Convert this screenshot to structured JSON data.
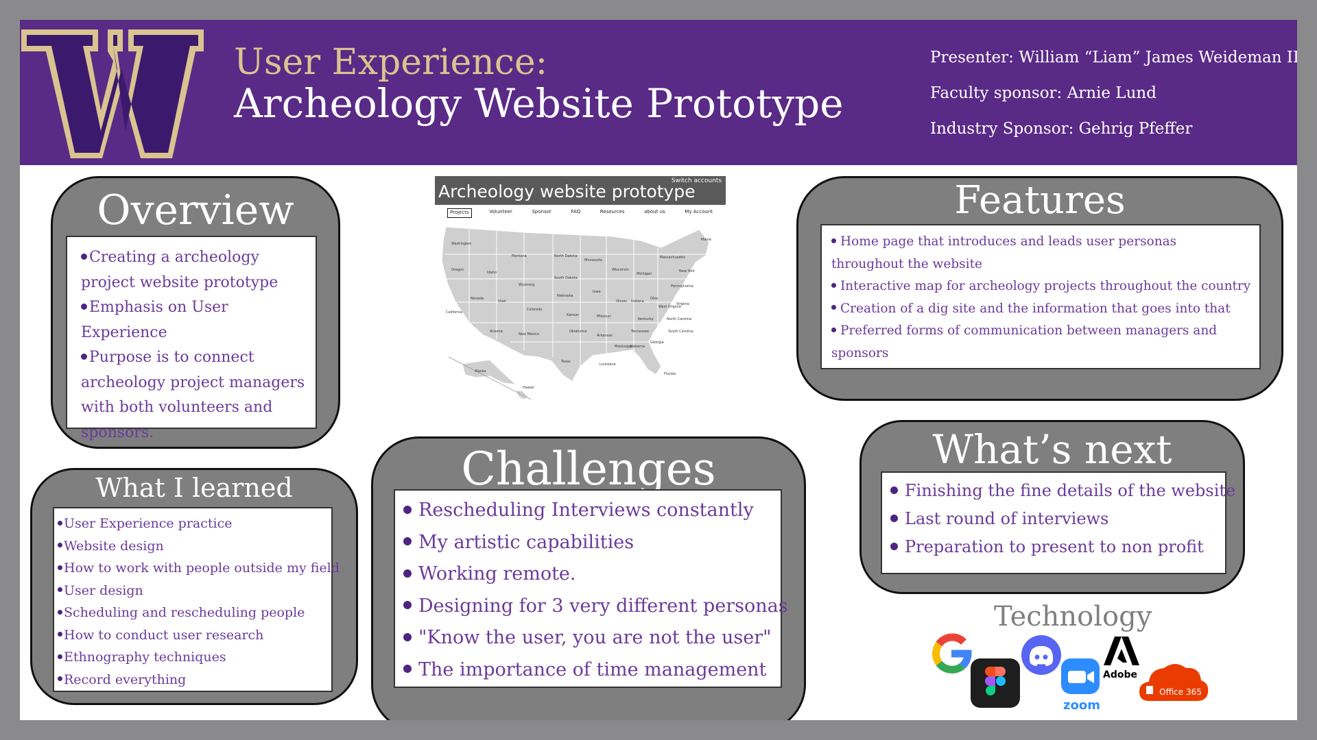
{
  "header": {
    "title_line1": "User Experience:",
    "title_line2": "Archeology Website Prototype",
    "presenter": "Presenter: William “Liam” James Weideman III",
    "faculty_sponsor": "Faculty sponsor: Arnie Lund",
    "industry_sponsor": "Industry Sponsor: Gehrig Pfeffer",
    "colors": {
      "purple": "#5a2a87",
      "gold": "#d9c490"
    }
  },
  "overview": {
    "title": "Overview",
    "items": [
      "Creating a archeology project website prototype",
      "Emphasis on User Experience",
      "Purpose is to connect archeology project managers with both volunteers and sponsors."
    ]
  },
  "learned": {
    "title": "What I learned",
    "items": [
      "User Experience practice",
      "Website design",
      "How to work with people outside my field",
      "User design",
      "Scheduling and rescheduling people",
      "How to conduct user research",
      "Ethnography techniques",
      "Record everything"
    ]
  },
  "challenges": {
    "title": "Challenges",
    "items": [
      "Rescheduling Interviews constantly",
      "My artistic capabilities",
      "Working remote.",
      "Designing for 3 very different personas",
      "\"Know the user, you are not the user\"",
      "The importance of time management"
    ]
  },
  "features": {
    "title": "Features",
    "items": [
      "Home page that introduces and leads user personas throughout the website",
      "Interactive map for archeology projects throughout the country",
      "Creation of a dig site and the information that goes into that",
      "Preferred forms of communication between managers and sponsors"
    ]
  },
  "next": {
    "title": "What’s next",
    "items": [
      "Finishing the fine details of the website",
      "Last round of interviews",
      "Preparation to present to non profit"
    ]
  },
  "prototype": {
    "title": "Archeology website prototype",
    "switch_accounts": "Switch accounts",
    "nav": [
      "Projects",
      "Volunteer",
      "Sponsor",
      "FAQ",
      "Resources",
      "about us",
      "My Account"
    ],
    "states": [
      "Washington",
      "Oregon",
      "California",
      "Nevada",
      "Idaho",
      "Montana",
      "Wyoming",
      "Utah",
      "Arizona",
      "Colorado",
      "New Mexico",
      "North Dakota",
      "South Dakota",
      "Nebraska",
      "Kansas",
      "Oklahoma",
      "Texas",
      "Minnesota",
      "Iowa",
      "Missouri",
      "Arkansas",
      "Louisiana",
      "Wisconsin",
      "Illinois",
      "Michigan",
      "Indiana",
      "Ohio",
      "Kentucky",
      "Tennessee",
      "Mississippi",
      "Alabama",
      "Georgia",
      "Florida",
      "South Carolina",
      "North Carolina",
      "Virginia",
      "West Virginia",
      "Pennsylvania",
      "New York",
      "Maine",
      "Massachusetts",
      "Alaska",
      "Hawaii"
    ]
  },
  "technology": {
    "title": "Technology",
    "icons": [
      "google-icon",
      "figma-icon",
      "discord-icon",
      "zoom-icon",
      "adobe-icon",
      "office365-icon"
    ],
    "zoom_label": "zoom",
    "adobe_label": "Adobe",
    "office_label": "Office 365"
  }
}
